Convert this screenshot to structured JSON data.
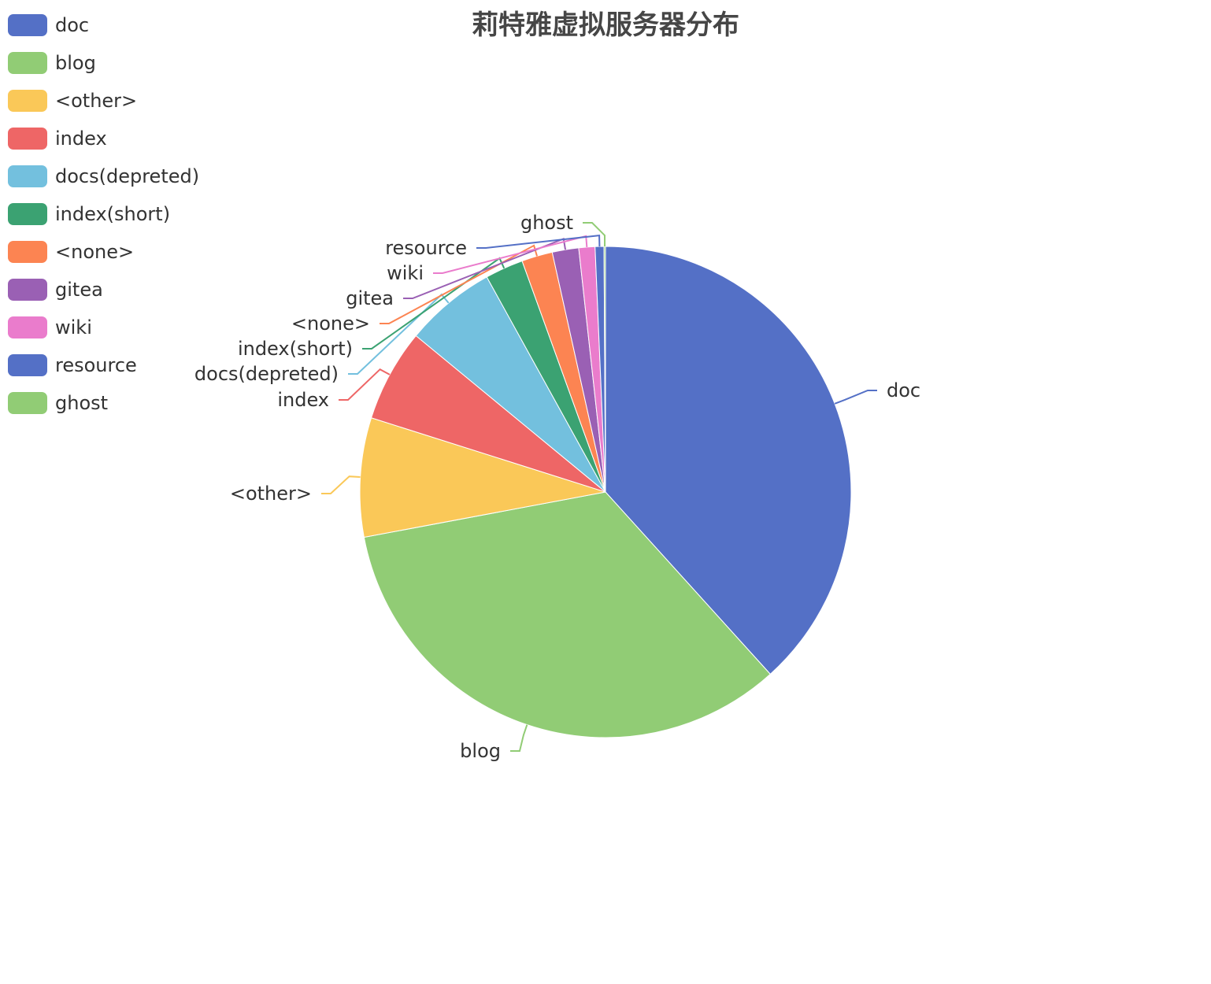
{
  "chart_data": {
    "type": "pie",
    "title": "莉特雅虚拟服务器分布",
    "legend_position": "top-left",
    "series": [
      {
        "name": "doc",
        "value": 39.6,
        "color": "#5470c6"
      },
      {
        "name": "blog",
        "value": 34.9,
        "color": "#91cc75"
      },
      {
        "name": "<other>",
        "value": 8.1,
        "color": "#fac858"
      },
      {
        "name": "index",
        "value": 6.3,
        "color": "#ee6666"
      },
      {
        "name": "docs(depreted)",
        "value": 6.2,
        "color": "#73c0de"
      },
      {
        "name": "index(short)",
        "value": 2.6,
        "color": "#3ba272"
      },
      {
        "name": "<none>",
        "value": 2.1,
        "color": "#fc8452"
      },
      {
        "name": "gitea",
        "value": 1.8,
        "color": "#9a60b4"
      },
      {
        "name": "wiki",
        "value": 1.1,
        "color": "#ea7ccc"
      },
      {
        "name": "resource",
        "value": 0.6,
        "color": "#5470c6"
      },
      {
        "name": "ghost",
        "value": 0.1,
        "color": "#91cc75"
      }
    ]
  }
}
